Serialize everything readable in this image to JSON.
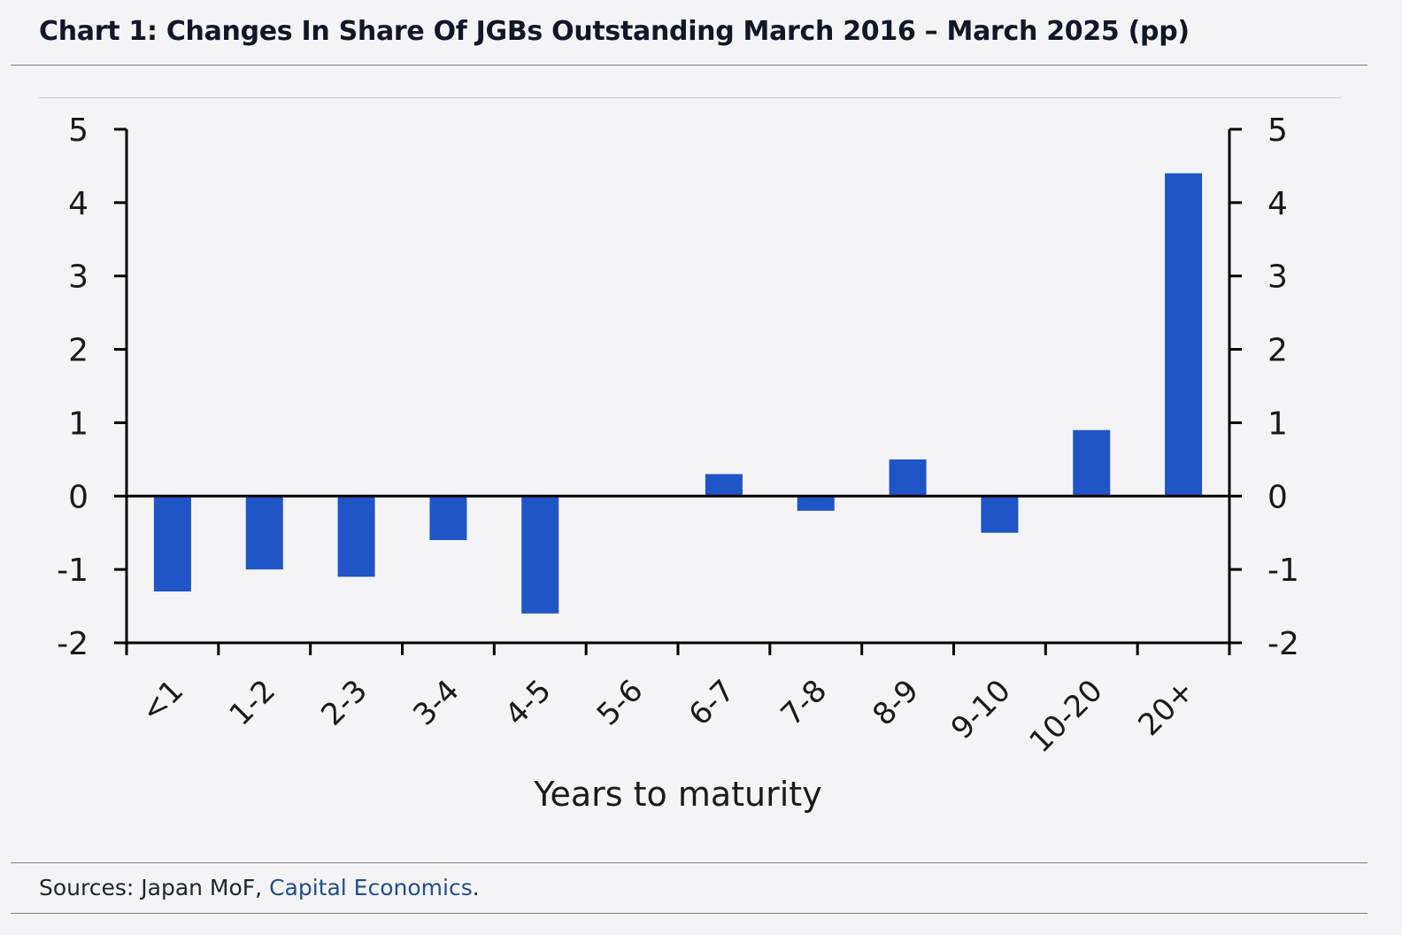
{
  "header": {
    "title": "Chart 1: Changes In Share Of JGBs Outstanding March 2016 – March 2025 (pp)"
  },
  "footer": {
    "sources_prefix": "Sources: Japan MoF, ",
    "sources_link": "Capital Economics",
    "sources_suffix": "."
  },
  "colors": {
    "bar": "#1f55c6",
    "axis": "#000000",
    "background": "#f4f4f6",
    "link": "#234e8c"
  },
  "chart_data": {
    "type": "bar",
    "title": "",
    "xlabel": "Years to maturity",
    "ylabel": "",
    "categories": [
      "<1",
      "1-2",
      "2-3",
      "3-4",
      "4-5",
      "5-6",
      "6-7",
      "7-8",
      "8-9",
      "9-10",
      "10-20",
      "20+"
    ],
    "values": [
      -1.3,
      -1.0,
      -1.1,
      -0.6,
      -1.6,
      0.0,
      0.3,
      -0.2,
      0.5,
      -0.5,
      0.9,
      4.4
    ],
    "ylim": [
      -2,
      5
    ],
    "yticks": [
      5,
      4,
      3,
      2,
      1,
      0,
      -1,
      -2
    ],
    "secondary_y_axis": true,
    "grid": false,
    "legend": "none"
  }
}
